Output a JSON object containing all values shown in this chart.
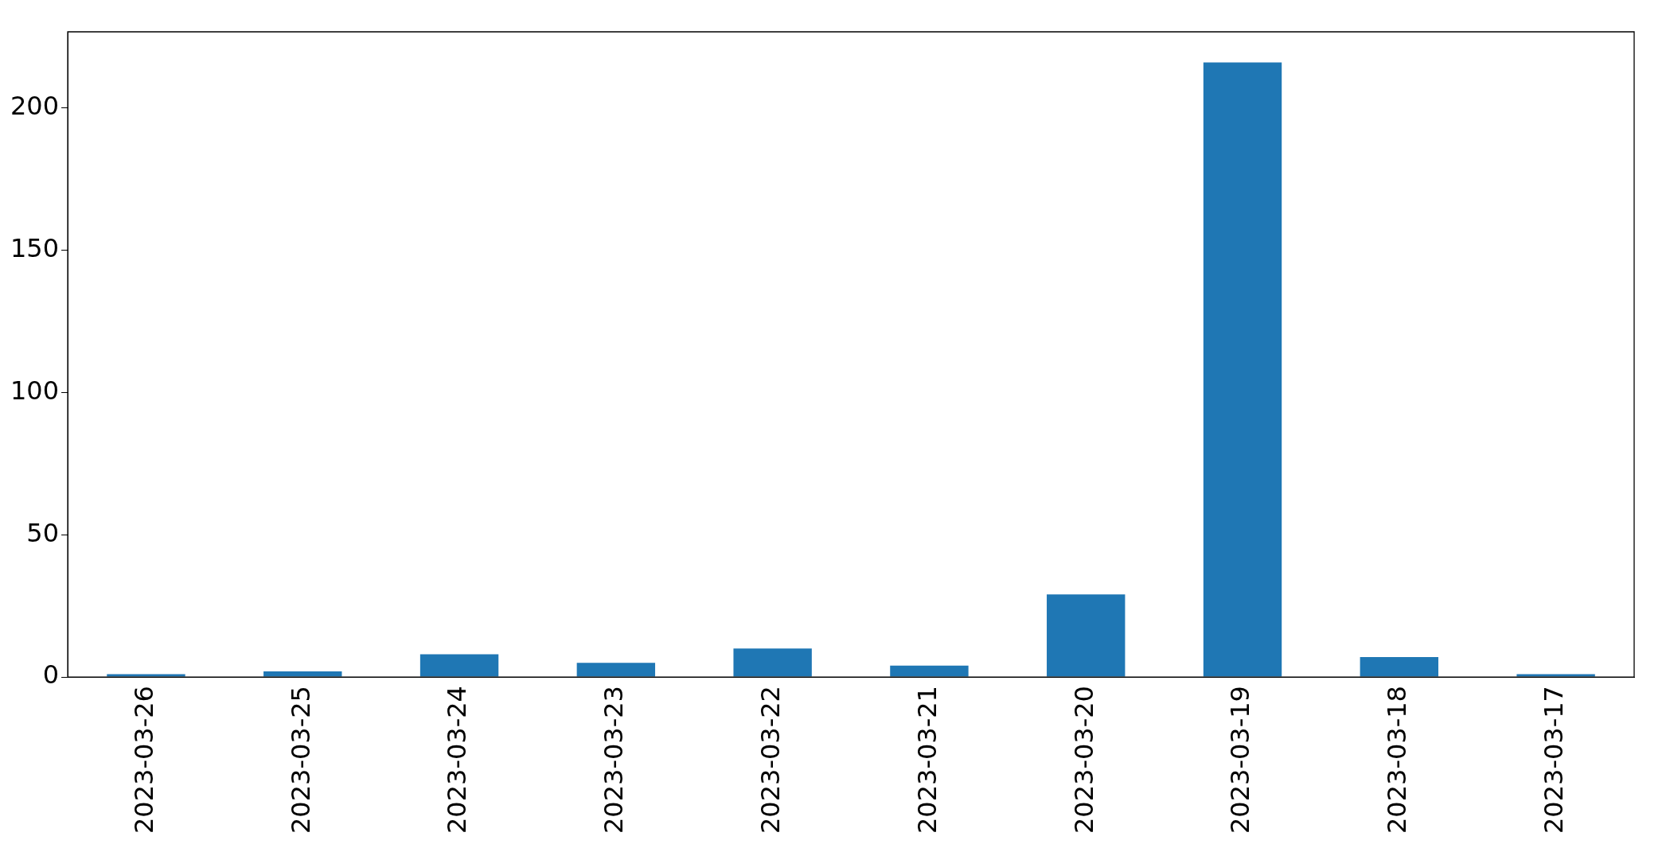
{
  "chart_data": {
    "type": "bar",
    "categories": [
      "2023-03-26",
      "2023-03-25",
      "2023-03-24",
      "2023-03-23",
      "2023-03-22",
      "2023-03-21",
      "2023-03-20",
      "2023-03-19",
      "2023-03-18",
      "2023-03-17"
    ],
    "values": [
      1,
      2,
      8,
      5,
      10,
      4,
      29,
      216,
      7,
      1
    ],
    "color": "#1f77b4",
    "ylim": [
      0,
      226.8
    ],
    "yticks": [
      0,
      50,
      100,
      150,
      200
    ],
    "grid": false,
    "legend": false
  }
}
